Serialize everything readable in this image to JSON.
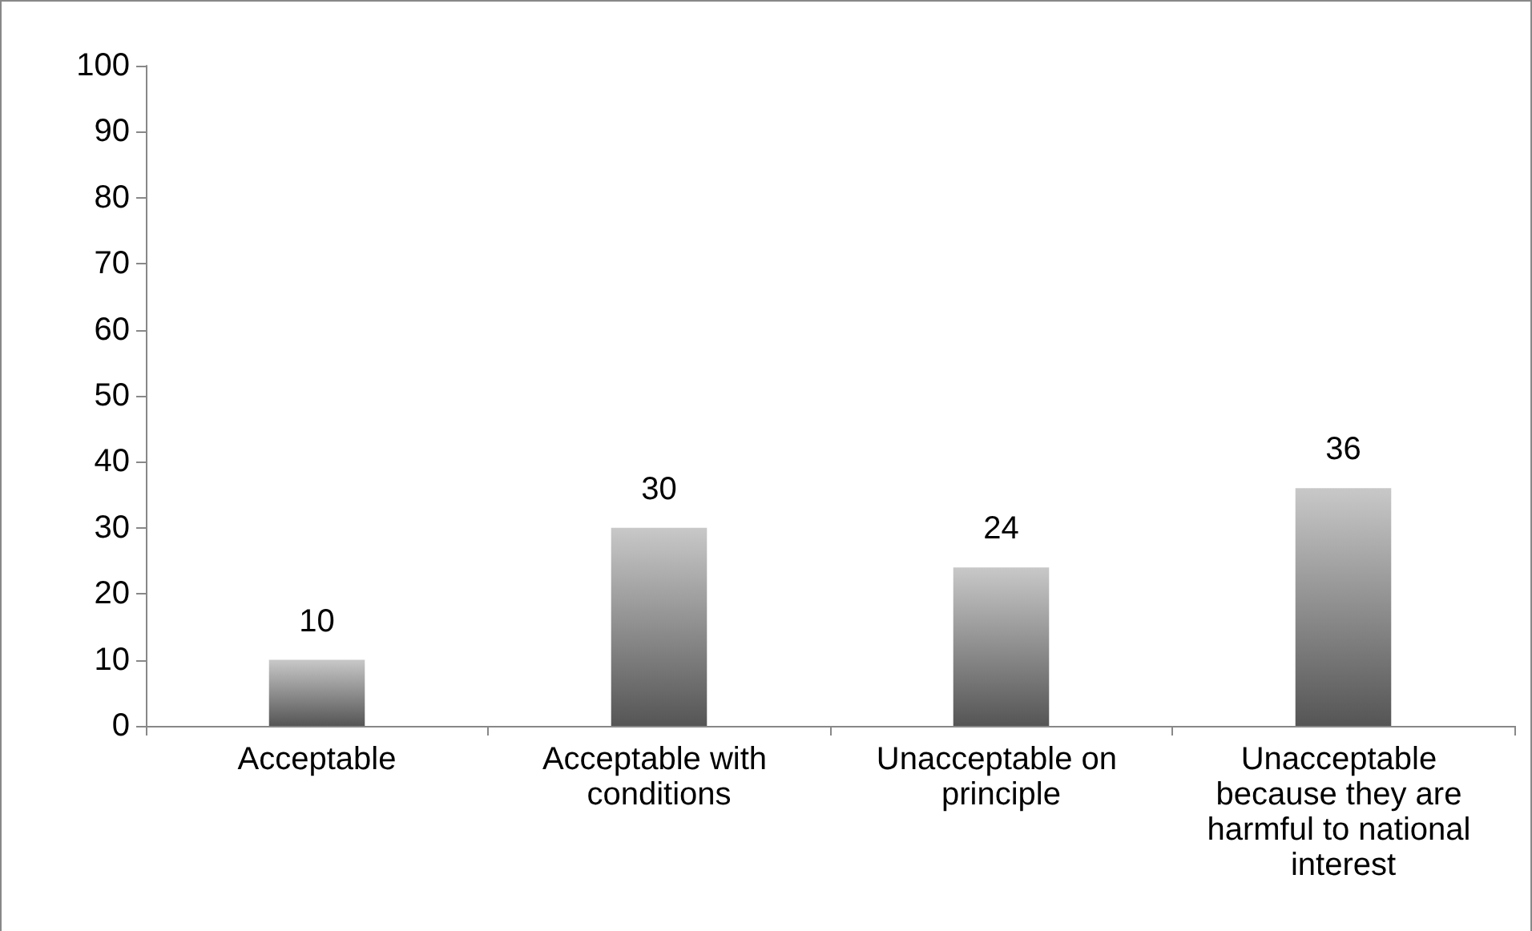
{
  "chart_data": {
    "type": "bar",
    "categories": [
      "Acceptable",
      "Acceptable with conditions",
      "Unacceptable on principle",
      "Unacceptable because they are harmful to national interest"
    ],
    "values": [
      10,
      30,
      24,
      36
    ],
    "color": "#9a9a9a",
    "ylim": [
      0,
      100
    ],
    "yticks": [
      0,
      10,
      20,
      30,
      40,
      50,
      60,
      70,
      80,
      90,
      100
    ],
    "grid": false,
    "data_labels": true
  }
}
